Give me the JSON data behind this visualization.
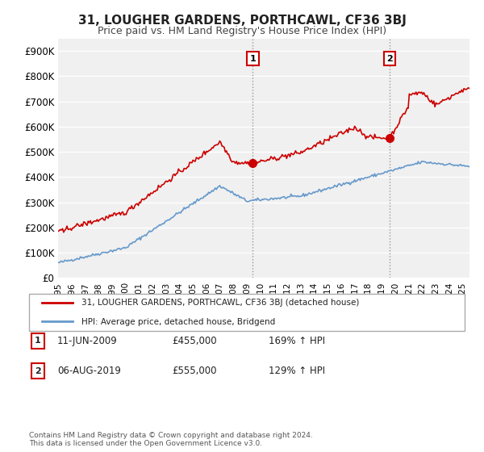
{
  "title": "31, LOUGHER GARDENS, PORTHCAWL, CF36 3BJ",
  "subtitle": "Price paid vs. HM Land Registry's House Price Index (HPI)",
  "background_color": "#ffffff",
  "plot_bg_color": "#f0f0f0",
  "grid_color": "#ffffff",
  "red_color": "#cc0000",
  "blue_color": "#6699cc",
  "ylim": [
    0,
    950000
  ],
  "yticks": [
    0,
    100000,
    200000,
    300000,
    400000,
    500000,
    600000,
    700000,
    800000,
    900000
  ],
  "ytick_labels": [
    "£0",
    "£100K",
    "£200K",
    "£300K",
    "£400K",
    "£500K",
    "£600K",
    "£700K",
    "£800K",
    "£900K"
  ],
  "xlim_start": 1995.0,
  "xlim_end": 2025.5,
  "marker1_x": 2009.44,
  "marker1_y": 455000,
  "marker1_label": "1",
  "marker1_date": "11-JUN-2009",
  "marker1_price": "£455,000",
  "marker1_hpi": "169% ↑ HPI",
  "marker2_x": 2019.58,
  "marker2_y": 555000,
  "marker2_label": "2",
  "marker2_date": "06-AUG-2019",
  "marker2_price": "£555,000",
  "marker2_hpi": "129% ↑ HPI",
  "legend_line1": "31, LOUGHER GARDENS, PORTHCAWL, CF36 3BJ (detached house)",
  "legend_line2": "HPI: Average price, detached house, Bridgend",
  "footer": "Contains HM Land Registry data © Crown copyright and database right 2024.\nThis data is licensed under the Open Government Licence v3.0."
}
